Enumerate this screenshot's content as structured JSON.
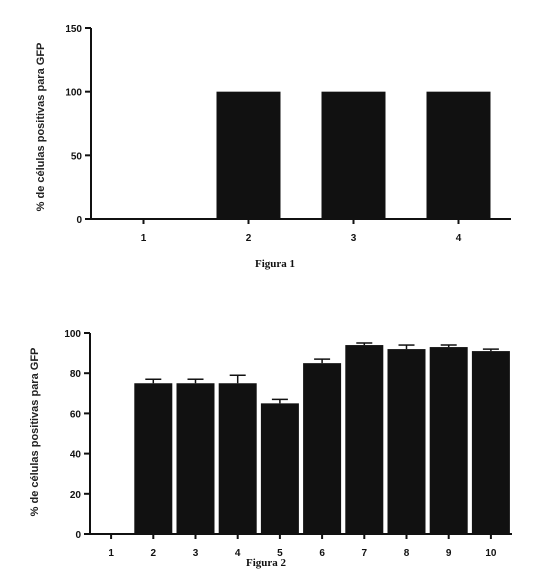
{
  "chart_data": [
    {
      "type": "bar",
      "caption": "Figura 1",
      "ylabel": "% de células positivas para GFP",
      "xlabel": "",
      "categories": [
        "1",
        "2",
        "3",
        "4"
      ],
      "values": [
        0,
        100,
        100,
        100
      ],
      "errors": [
        0,
        0,
        0,
        0
      ],
      "ylim": [
        0,
        150
      ],
      "yticks": [
        0,
        50,
        100,
        150
      ],
      "bar_color": "#111111",
      "grid": false,
      "legend": "none"
    },
    {
      "type": "bar",
      "caption": "Figura 2",
      "ylabel": "% de células positivas para GFP",
      "xlabel": "",
      "categories": [
        "1",
        "2",
        "3",
        "4",
        "5",
        "6",
        "7",
        "8",
        "9",
        "10"
      ],
      "values": [
        0,
        75,
        75,
        75,
        65,
        85,
        94,
        92,
        93,
        91
      ],
      "errors": [
        0,
        2,
        2,
        4,
        2,
        2,
        1,
        2,
        1,
        1
      ],
      "ylim": [
        0,
        100
      ],
      "yticks": [
        0,
        20,
        40,
        60,
        80,
        100
      ],
      "bar_color": "#111111",
      "grid": false,
      "legend": "none"
    }
  ]
}
